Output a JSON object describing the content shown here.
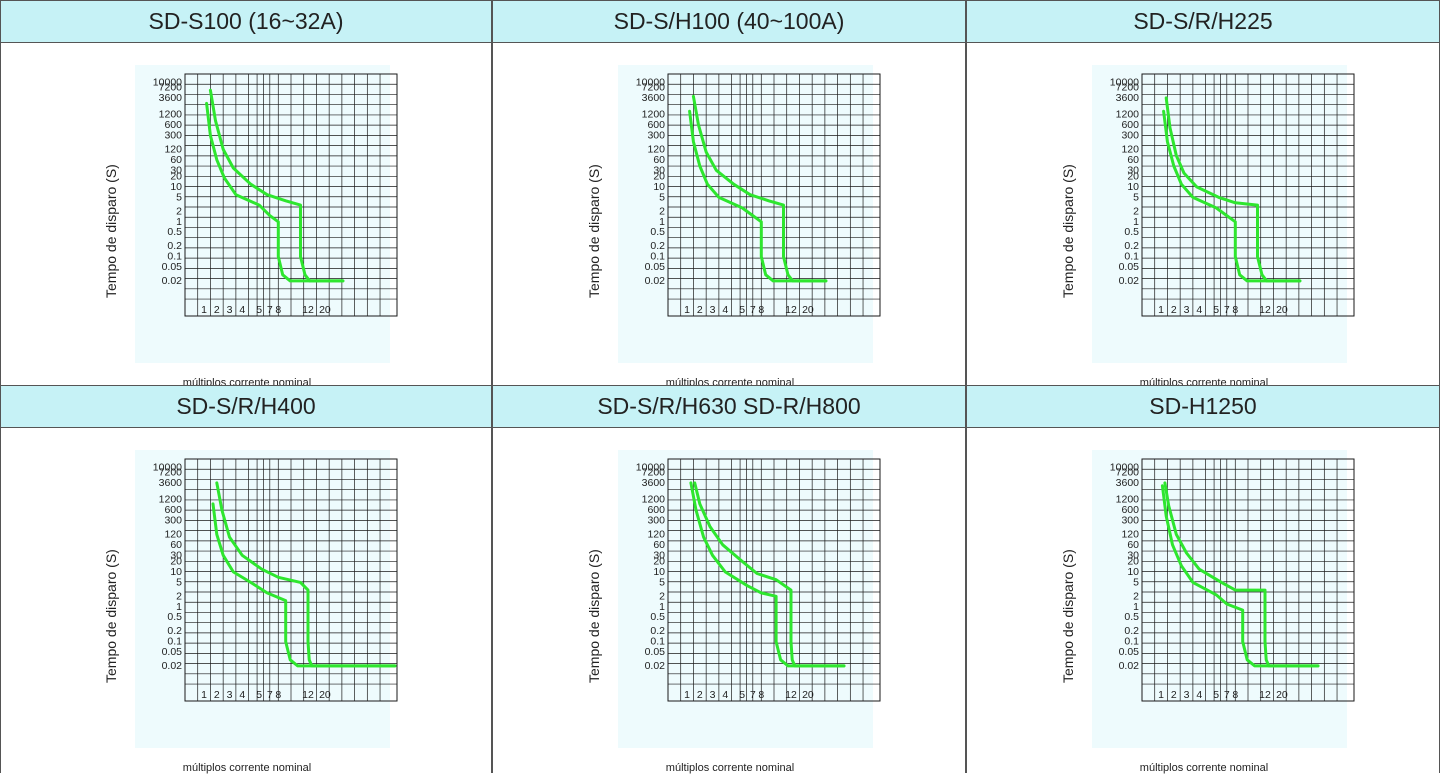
{
  "colors": {
    "header_bg": "#c6f2f6",
    "plot_bg": "#eefbfd",
    "curve": "#2ee62e",
    "grid": "#1a1a1a"
  },
  "common": {
    "ylabel": "Tempo de disparo (S)",
    "xlabel": "múltiplos corrente nominal",
    "y_ticks": [
      "10000",
      "7200",
      "3600",
      "1200",
      "600",
      "300",
      "120",
      "60",
      "30",
      "20",
      "10",
      "5",
      "2",
      "1",
      "0.5",
      "0.2",
      "0.1",
      "0.05",
      "0.02"
    ],
    "x_ticks": [
      "1",
      "2",
      "3",
      "4",
      "5",
      "7",
      "8",
      "12",
      "20"
    ]
  },
  "chart_data": [
    {
      "type": "line",
      "title": "SD-S100 (16~32A)",
      "xlabel": "múltiplos corrente nominal",
      "ylabel": "Tempo de disparo (S)",
      "y_scale": "log",
      "y_ticks": [
        "10000",
        "7200",
        "3600",
        "1200",
        "600",
        "300",
        "120",
        "60",
        "30",
        "20",
        "10",
        "5",
        "2",
        "1",
        "0.5",
        "0.2",
        "0.1",
        "0.05",
        "0.02"
      ],
      "x_ticks": [
        "1",
        "2",
        "3",
        "4",
        "5",
        "7",
        "8",
        "12",
        "20"
      ],
      "series": [
        {
          "x": [
            1.2,
            1.5,
            2,
            2.6,
            3.5,
            5,
            7,
            8,
            8,
            8.6,
            9.6,
            12,
            20,
            30
          ],
          "y": [
            2500,
            300,
            60,
            18,
            6,
            3,
            1.5,
            1,
            0.1,
            0.03,
            0.02,
            0.02,
            0.02,
            0.02
          ]
        },
        {
          "x": [
            1.5,
            1.9,
            2.5,
            3.3,
            4.5,
            6.5,
            9,
            11,
            11,
            11.6,
            12.8,
            20,
            30
          ],
          "y": [
            6000,
            800,
            120,
            35,
            12,
            6,
            4,
            3,
            0.1,
            0.03,
            0.02,
            0.02,
            0.02
          ]
        }
      ]
    },
    {
      "type": "line",
      "title": "SD-S/H100 (40~100A)",
      "xlabel": "múltiplos corrente nominal",
      "ylabel": "Tempo de disparo (S)",
      "y_scale": "log",
      "y_ticks": [
        "10000",
        "7200",
        "3600",
        "1200",
        "600",
        "300",
        "120",
        "60",
        "30",
        "20",
        "10",
        "5",
        "2",
        "1",
        "0.5",
        "0.2",
        "0.1",
        "0.05",
        "0.02"
      ],
      "x_ticks": [
        "1",
        "2",
        "3",
        "4",
        "5",
        "7",
        "8",
        "12",
        "20"
      ],
      "series": [
        {
          "x": [
            1.2,
            1.5,
            2,
            2.6,
            3.5,
            5,
            7,
            8,
            8,
            8.6,
            9.6,
            12,
            20,
            30
          ],
          "y": [
            1500,
            200,
            40,
            12,
            5,
            2.5,
            1.5,
            1,
            0.1,
            0.03,
            0.02,
            0.02,
            0.02,
            0.02
          ]
        },
        {
          "x": [
            1.5,
            1.9,
            2.5,
            3.3,
            4.5,
            6.5,
            9,
            11,
            11,
            11.6,
            12.8,
            20,
            30
          ],
          "y": [
            4000,
            600,
            100,
            30,
            12,
            6,
            4,
            3,
            0.1,
            0.03,
            0.02,
            0.02,
            0.02
          ]
        }
      ]
    },
    {
      "type": "line",
      "title": "SD-S/R/H225",
      "xlabel": "múltiplos corrente nominal",
      "ylabel": "Tempo de disparo (S)",
      "y_scale": "log",
      "y_ticks": [
        "10000",
        "7200",
        "3600",
        "1200",
        "600",
        "300",
        "120",
        "60",
        "30",
        "20",
        "10",
        "5",
        "2",
        "1",
        "0.5",
        "0.2",
        "0.1",
        "0.05",
        "0.02"
      ],
      "x_ticks": [
        "1",
        "2",
        "3",
        "4",
        "5",
        "7",
        "8",
        "12",
        "20"
      ],
      "series": [
        {
          "x": [
            1.2,
            1.5,
            2,
            2.6,
            3.5,
            5,
            7,
            8,
            8,
            8.6,
            9.6,
            12,
            20,
            30
          ],
          "y": [
            1500,
            200,
            40,
            12,
            5,
            2.5,
            1.5,
            1,
            0.1,
            0.03,
            0.02,
            0.02,
            0.02,
            0.02
          ]
        },
        {
          "x": [
            1.4,
            1.7,
            2.2,
            2.8,
            3.8,
            5.5,
            8,
            11,
            11,
            11.6,
            12.8,
            20,
            30
          ],
          "y": [
            3600,
            500,
            80,
            25,
            10,
            5,
            3.5,
            3,
            0.1,
            0.03,
            0.02,
            0.02,
            0.02
          ]
        }
      ]
    },
    {
      "type": "line",
      "title": "SD-S/R/H400",
      "xlabel": "múltiplos corrente nominal",
      "ylabel": "Tempo de disparo (S)",
      "y_scale": "log",
      "y_ticks": [
        "10000",
        "7200",
        "3600",
        "1200",
        "600",
        "300",
        "120",
        "60",
        "30",
        "20",
        "10",
        "5",
        "2",
        "1",
        "0.5",
        "0.2",
        "0.1",
        "0.05",
        "0.02"
      ],
      "x_ticks": [
        "1",
        "2",
        "3",
        "4",
        "5",
        "7",
        "8",
        "12",
        "20"
      ],
      "series": [
        {
          "x": [
            1.7,
            2,
            2.5,
            3.3,
            4.5,
            6.5,
            9,
            9,
            9.6,
            10.6,
            20,
            60
          ],
          "y": [
            900,
            120,
            30,
            10,
            5,
            2.5,
            1.5,
            0.1,
            0.03,
            0.02,
            0.02,
            0.02
          ]
        },
        {
          "x": [
            2,
            2.4,
            3,
            4,
            5.5,
            8,
            11,
            12,
            12,
            12.6,
            13.8,
            20,
            60
          ],
          "y": [
            3600,
            600,
            100,
            30,
            12,
            7,
            5,
            3,
            0.1,
            0.03,
            0.02,
            0.02,
            0.02
          ]
        }
      ]
    },
    {
      "type": "line",
      "title": "SD-S/R/H630 SD-R/H800",
      "xlabel": "múltiplos corrente nominal",
      "ylabel": "Tempo de disparo (S)",
      "y_scale": "log",
      "y_ticks": [
        "10000",
        "7200",
        "3600",
        "1200",
        "600",
        "300",
        "120",
        "60",
        "30",
        "20",
        "10",
        "5",
        "2",
        "1",
        "0.5",
        "0.2",
        "0.1",
        "0.05",
        "0.02"
      ],
      "x_ticks": [
        "1",
        "2",
        "3",
        "4",
        "5",
        "7",
        "8",
        "12",
        "20"
      ],
      "series": [
        {
          "x": [
            1.3,
            1.7,
            2.3,
            3,
            4,
            6,
            8,
            10,
            10,
            10.6,
            11.6,
            20,
            40
          ],
          "y": [
            3600,
            600,
            100,
            30,
            10,
            4,
            2.5,
            2,
            0.1,
            0.03,
            0.02,
            0.02,
            0.02
          ]
        },
        {
          "x": [
            1.6,
            2,
            2.8,
            3.8,
            5,
            7.5,
            10,
            12,
            12,
            12.6,
            13.8,
            20,
            40
          ],
          "y": [
            3600,
            900,
            200,
            60,
            20,
            9,
            6,
            3,
            0.1,
            0.03,
            0.02,
            0.02,
            0.02
          ]
        }
      ]
    },
    {
      "type": "line",
      "title": "SD-H1250",
      "xlabel": "múltiplos corrente nominal",
      "ylabel": "Tempo de disparo (S)",
      "y_scale": "log",
      "y_ticks": [
        "10000",
        "7200",
        "3600",
        "1200",
        "600",
        "300",
        "120",
        "60",
        "30",
        "20",
        "10",
        "5",
        "2",
        "1",
        "0.5",
        "0.2",
        "0.1",
        "0.05",
        "0.02"
      ],
      "x_ticks": [
        "1",
        "2",
        "3",
        "4",
        "5",
        "7",
        "8",
        "12",
        "20"
      ],
      "series": [
        {
          "x": [
            1.1,
            1.4,
            1.9,
            2.6,
            3.5,
            5,
            7,
            9,
            9,
            9.6,
            10.6,
            20,
            40
          ],
          "y": [
            3000,
            400,
            60,
            15,
            5,
            2.2,
            1.2,
            0.8,
            0.1,
            0.03,
            0.02,
            0.02,
            0.02
          ]
        },
        {
          "x": [
            1.3,
            1.6,
            2.2,
            3,
            4,
            6,
            8,
            12,
            12,
            12.6,
            13.8,
            20,
            40
          ],
          "y": [
            3600,
            800,
            120,
            35,
            12,
            5,
            3,
            3,
            0.1,
            0.03,
            0.02,
            0.02,
            0.02
          ]
        }
      ]
    }
  ]
}
